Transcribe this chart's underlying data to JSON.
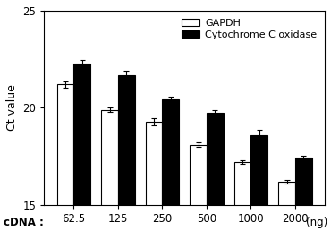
{
  "categories": [
    "62.5",
    "125",
    "250",
    "500",
    "1000",
    "2000"
  ],
  "gapdh_values": [
    21.2,
    19.9,
    19.3,
    18.1,
    17.2,
    16.2
  ],
  "gapdh_errors": [
    0.15,
    0.12,
    0.18,
    0.12,
    0.1,
    0.1
  ],
  "cyto_values": [
    22.3,
    21.7,
    20.45,
    19.75,
    18.6,
    17.45
  ],
  "cyto_errors": [
    0.18,
    0.2,
    0.12,
    0.15,
    0.28,
    0.1
  ],
  "ylabel": "Ct value",
  "ylim": [
    15,
    25
  ],
  "yticks": [
    15,
    20,
    25
  ],
  "legend_labels": [
    "GAPDH",
    "Cytochrome C oxidase"
  ],
  "gapdh_facecolor": "white",
  "gapdh_edgecolor": "black",
  "cyto_facecolor": "black",
  "cyto_edgecolor": "black",
  "bar_width": 0.38,
  "bar_linewidth": 0.8,
  "capsize": 2,
  "elinewidth": 0.8
}
